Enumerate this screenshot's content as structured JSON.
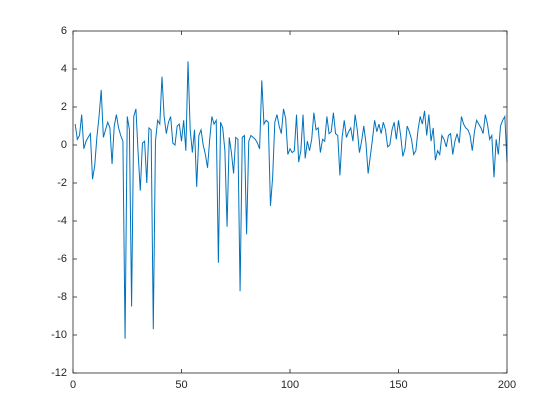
{
  "chart_data": {
    "type": "line",
    "x": [
      1,
      2,
      3,
      4,
      5,
      6,
      7,
      8,
      9,
      10,
      11,
      12,
      13,
      14,
      15,
      16,
      17,
      18,
      19,
      20,
      21,
      22,
      23,
      24,
      25,
      26,
      27,
      28,
      29,
      30,
      31,
      32,
      33,
      34,
      35,
      36,
      37,
      38,
      39,
      40,
      41,
      42,
      43,
      44,
      45,
      46,
      47,
      48,
      49,
      50,
      51,
      52,
      53,
      54,
      55,
      56,
      57,
      58,
      59,
      60,
      61,
      62,
      63,
      64,
      65,
      66,
      67,
      68,
      69,
      70,
      71,
      72,
      73,
      74,
      75,
      76,
      77,
      78,
      79,
      80,
      81,
      82,
      83,
      84,
      85,
      86,
      87,
      88,
      89,
      90,
      91,
      92,
      93,
      94,
      95,
      96,
      97,
      98,
      99,
      100,
      101,
      102,
      103,
      104,
      105,
      106,
      107,
      108,
      109,
      110,
      111,
      112,
      113,
      114,
      115,
      116,
      117,
      118,
      119,
      120,
      121,
      122,
      123,
      124,
      125,
      126,
      127,
      128,
      129,
      130,
      131,
      132,
      133,
      134,
      135,
      136,
      137,
      138,
      139,
      140,
      141,
      142,
      143,
      144,
      145,
      146,
      147,
      148,
      149,
      150,
      151,
      152,
      153,
      154,
      155,
      156,
      157,
      158,
      159,
      160,
      161,
      162,
      163,
      164,
      165,
      166,
      167,
      168,
      169,
      170,
      171,
      172,
      173,
      174,
      175,
      176,
      177,
      178,
      179,
      180,
      181,
      182,
      183,
      184,
      185,
      186,
      187,
      188,
      189,
      190,
      191,
      192,
      193,
      194,
      195,
      196,
      197,
      198,
      199,
      200
    ],
    "values": [
      1.1,
      0.3,
      0.5,
      1.6,
      -0.2,
      0.2,
      0.4,
      0.6,
      -1.8,
      -1.1,
      0.4,
      1.5,
      2.9,
      0.4,
      0.8,
      1.2,
      0.9,
      -1.0,
      1.0,
      1.6,
      0.9,
      0.5,
      0.2,
      -10.2,
      1.5,
      0.8,
      -8.5,
      1.5,
      1.9,
      -0.4,
      -2.4,
      0.1,
      0.2,
      -2.0,
      0.9,
      0.8,
      -9.7,
      0.2,
      1.3,
      1.1,
      3.6,
      1.5,
      0.6,
      1.2,
      1.5,
      0.1,
      0.0,
      1.0,
      1.1,
      0.2,
      1.3,
      -0.3,
      4.4,
      0.8,
      -0.4,
      0.8,
      -2.2,
      0.5,
      0.8,
      0.0,
      -0.5,
      -1.2,
      0.3,
      1.5,
      1.1,
      1.3,
      -6.2,
      1.2,
      0.9,
      -0.3,
      -4.3,
      0.4,
      -0.4,
      -1.5,
      0.4,
      0.3,
      -7.7,
      0.4,
      0.5,
      -4.7,
      0.2,
      0.5,
      0.4,
      0.3,
      0.1,
      -0.2,
      3.4,
      1.1,
      1.3,
      1.2,
      -3.2,
      -1.7,
      1.2,
      1.6,
      1.0,
      0.6,
      1.9,
      1.4,
      -0.5,
      -0.2,
      -0.4,
      -0.3,
      1.6,
      -0.9,
      -0.3,
      1.6,
      -0.7,
      0.2,
      -0.3,
      0.3,
      1.7,
      0.8,
      0.9,
      -0.4,
      0.3,
      0.2,
      1.5,
      0.6,
      0.7,
      1.7,
      0.6,
      0.5,
      -1.6,
      0.4,
      1.3,
      0.4,
      0.7,
      0.9,
      0.2,
      1.6,
      0.8,
      -0.4,
      0.2,
      1.0,
      0.1,
      -1.5,
      -0.6,
      0.3,
      1.3,
      0.7,
      1.1,
      0.6,
      1.2,
      0.8,
      -0.1,
      0.0,
      0.8,
      1.2,
      0.3,
      1.3,
      0.5,
      -0.6,
      -0.2,
      1.0,
      0.7,
      0.3,
      -0.5,
      -0.3,
      0.8,
      1.5,
      1.1,
      1.8,
      0.5,
      1.6,
      0.2,
      0.9,
      -0.8,
      -0.3,
      -0.5,
      0.5,
      0.3,
      -0.1,
      0.5,
      0.6,
      -0.5,
      0.2,
      0.6,
      0.1,
      1.5,
      1.1,
      0.9,
      0.8,
      0.5,
      -0.3,
      0.7,
      1.3,
      1.1,
      0.9,
      0.6,
      1.6,
      1.1,
      0.3,
      0.5,
      -1.7,
      0.3,
      -0.5,
      1.0,
      1.3,
      1.5,
      -0.9
    ],
    "color": "#0072bd",
    "xlim": [
      0,
      200
    ],
    "xticks": [
      0,
      50,
      100,
      150,
      200
    ],
    "ylim": [
      -12,
      6
    ],
    "yticks": [
      -12,
      -10,
      -8,
      -6,
      -4,
      -2,
      0,
      2,
      4,
      6
    ]
  }
}
